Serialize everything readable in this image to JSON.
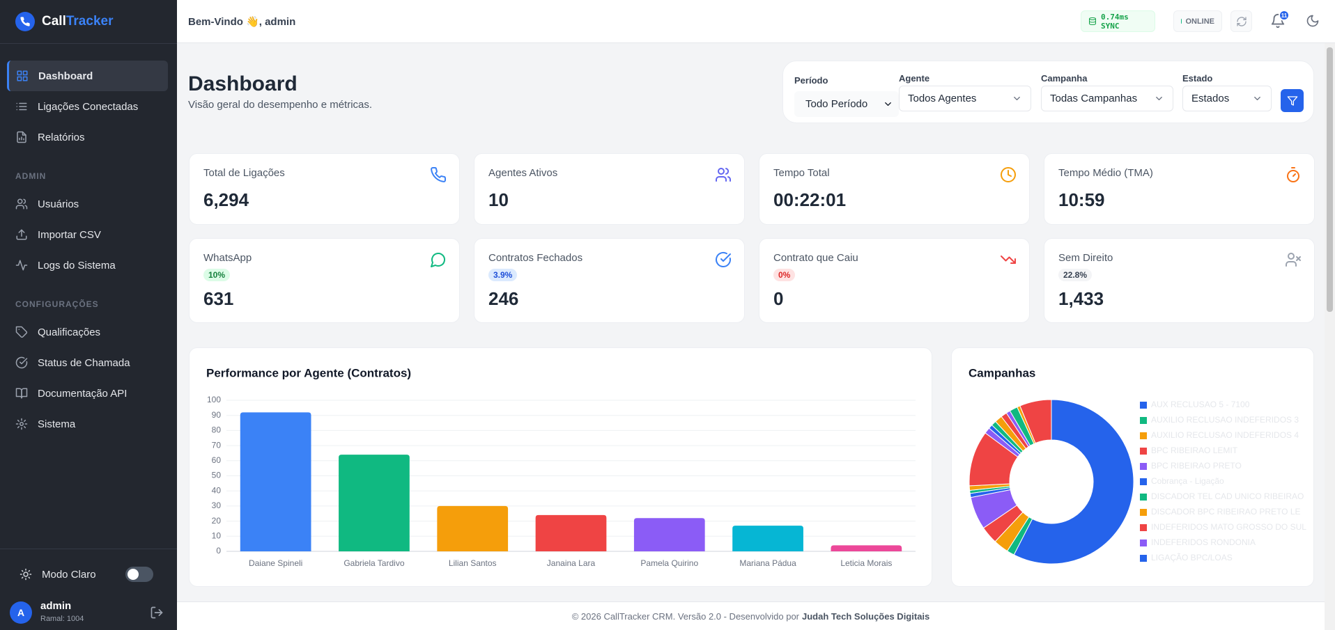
{
  "sidebar": {
    "brand": [
      "Call",
      "Tracker"
    ],
    "main_nav": [
      "Dashboard",
      "Ligações Conectadas",
      "Relatórios"
    ],
    "admin": {
      "title": "ADMIN",
      "items": [
        "Usuários",
        "Importar CSV",
        "Logs do Sistema"
      ]
    },
    "config": {
      "title": "CONFIGURAÇÕES",
      "items": [
        "Qualificações",
        "Status de Chamada",
        "Documentação API",
        "Sistema"
      ]
    },
    "theme_toggle": "Modo Claro",
    "user": {
      "initial": "A",
      "name": "admin",
      "extension": "Ramal: 1004"
    }
  },
  "header": {
    "greeting": "Bem-Vindo 👋, admin",
    "sync": "0.74ms SYNC",
    "status": "ONLINE",
    "notifications": "11"
  },
  "page": {
    "title": "Dashboard",
    "subtitle": "Visão geral do desempenho e métricas."
  },
  "filters": [
    {
      "label": "Período",
      "value": "Todo Período"
    },
    {
      "label": "Agente",
      "value": "Todos Agentes"
    },
    {
      "label": "Campanha",
      "value": "Todas Campanhas"
    },
    {
      "label": "Estado",
      "value": "Estados"
    }
  ],
  "stats": [
    {
      "label": "Total de Ligações",
      "value": "6,294"
    },
    {
      "label": "Agentes Ativos",
      "value": "10"
    },
    {
      "label": "Tempo Total",
      "value": "00:22:01"
    },
    {
      "label": "Tempo Médio (TMA)",
      "value": "10:59"
    },
    {
      "label": "WhatsApp",
      "badge": "10%",
      "value": "631"
    },
    {
      "label": "Contratos Fechados",
      "badge": "3.9%",
      "value": "246"
    },
    {
      "label": "Contrato que Caiu",
      "badge": "0%",
      "value": "0"
    },
    {
      "label": "Sem Direito",
      "badge": "22.8%",
      "value": "1,433"
    }
  ],
  "chart_data": [
    {
      "type": "bar",
      "title": "Performance por Agente (Contratos)",
      "categories": [
        "Daiane Spineli",
        "Gabriela Tardivo",
        "Lilian Santos",
        "Janaina Lara",
        "Pamela Quirino",
        "Mariana Pádua",
        "Leticia Morais"
      ],
      "values": [
        92,
        64,
        30,
        24,
        22,
        17,
        4
      ],
      "colors": [
        "#3b82f6",
        "#10b981",
        "#f59e0b",
        "#ef4444",
        "#8b5cf6",
        "#06b6d4",
        "#ec4899"
      ],
      "ylim": [
        0,
        100
      ],
      "yticks": [
        0,
        10,
        20,
        30,
        40,
        50,
        60,
        70,
        80,
        90,
        100
      ],
      "grid": true
    },
    {
      "type": "pie",
      "title": "Campanhas",
      "donut": true,
      "categories": [
        "AUX RECLUSAO 5 - 7100",
        "AUXILIO RECLUSAO INDEFERIDOS 3",
        "AUXILIO RECLUSAO INDEFERIDOS 4",
        "BPC RIBEIRAO LEMIT",
        "BPC RIBEIRAO PRETO",
        "Cobrança - Ligação",
        "DISCADOR TEL CAD UNICO RIBEIRAO",
        "DISCADOR BPC RIBEIRAO PRETO LE",
        "INDEFERIDOS MATO GROSSO DO SUL",
        "INDEFERIDOS RONDONIA",
        "LIGAÇÃO BPC/LOAS",
        null,
        null,
        null,
        null,
        null,
        null,
        null
      ],
      "values": [
        58,
        1.5,
        3,
        3.5,
        6.5,
        0.8,
        0.6,
        0.9,
        11,
        1.2,
        0.8,
        1,
        1.5,
        1.2,
        0.8,
        1.6,
        0.6,
        6.3
      ],
      "colors": [
        "#2563eb",
        "#10b981",
        "#f59e0b",
        "#ef4444",
        "#8b5cf6",
        "#2563eb",
        "#10b981",
        "#f59e0b",
        "#ef4444",
        "#8b5cf6",
        "#2563eb",
        "#10b981",
        "#f59e0b",
        "#ef4444",
        "#8b5cf6",
        "#10b981",
        "#f59e0b",
        "#ef4444"
      ]
    }
  ],
  "footer": {
    "text": "© 2026 CallTracker CRM. Versão 2.0 - Desenvolvido por",
    "company": "Judah Tech Soluções Digitais"
  }
}
